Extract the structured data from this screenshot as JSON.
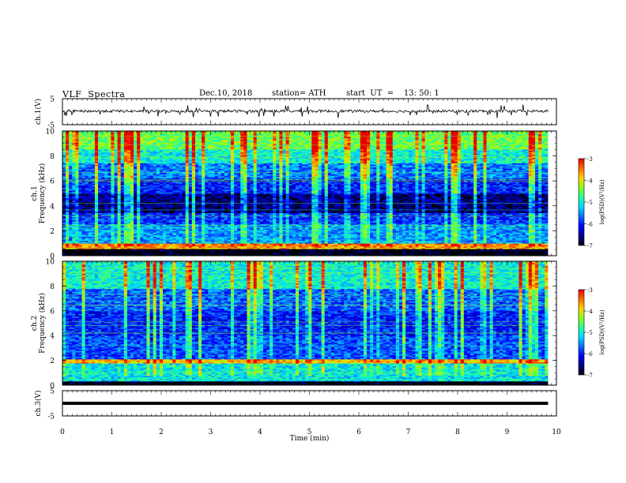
{
  "header": {
    "title": "VLF  Spectra",
    "date": "Dec.10, 2018",
    "station": "station= ATH",
    "start": "start  UT  =    13: 50: 1"
  },
  "chart_data": [
    {
      "type": "line",
      "panel": "ch1-waveform",
      "ylabel": "ch.1(V)",
      "ylim": [
        -5,
        5
      ],
      "yticks": [
        "5",
        "-5"
      ],
      "description_values": "noisy waveform centered near 0 V with short spikes down to about -2 V",
      "series": [
        {
          "x_range_min": [
            0,
            9.83
          ],
          "y_level": 0.2,
          "color": "#000000"
        }
      ]
    },
    {
      "type": "heatmap",
      "panel": "ch1-spectrogram",
      "ylabel": "ch.1\nFrequency  (kHz)",
      "ylim": [
        0,
        10
      ],
      "yticks": [
        "0",
        "2",
        "4",
        "6",
        "8",
        "10"
      ],
      "x_range_min": [
        0,
        9.83
      ],
      "colorbar": {
        "label": "log(PSD)(V²/Hz)",
        "range": [
          -7,
          -3
        ],
        "ticks": [
          "-3",
          "-4",
          "-5",
          "-6",
          "-7"
        ]
      },
      "bands": [
        {
          "from_khz": 0.0,
          "to_khz": 0.6,
          "log_psd": -7.0
        },
        {
          "from_khz": 0.6,
          "to_khz": 1.0,
          "log_psd": -3.6
        },
        {
          "from_khz": 1.0,
          "to_khz": 2.6,
          "log_psd": -5.5
        },
        {
          "from_khz": 2.6,
          "to_khz": 3.4,
          "log_psd": -5.9
        },
        {
          "from_khz": 3.4,
          "to_khz": 5.0,
          "log_psd": -6.6
        },
        {
          "from_khz": 5.0,
          "to_khz": 6.2,
          "log_psd": -6.0
        },
        {
          "from_khz": 6.2,
          "to_khz": 7.5,
          "log_psd": -5.6
        },
        {
          "from_khz": 7.5,
          "to_khz": 8.6,
          "log_psd": -5.0
        },
        {
          "from_khz": 8.6,
          "to_khz": 10.0,
          "log_psd": -4.5
        }
      ]
    },
    {
      "type": "heatmap",
      "panel": "ch2-spectrogram",
      "ylabel": "ch.2\nFrequency  (kHz)",
      "ylim": [
        0,
        10
      ],
      "yticks": [
        "0",
        "2",
        "4",
        "6",
        "8",
        "10"
      ],
      "x_range_min": [
        0,
        9.83
      ],
      "colorbar": {
        "label": "log(PSD)(V²/Hz)",
        "range": [
          -7,
          -3
        ],
        "ticks": [
          "-3",
          "-4",
          "-5",
          "-6",
          "-7"
        ]
      },
      "bands": [
        {
          "from_khz": 0.0,
          "to_khz": 0.3,
          "log_psd": -7.0
        },
        {
          "from_khz": 0.3,
          "to_khz": 1.8,
          "log_psd": -5.1
        },
        {
          "from_khz": 1.8,
          "to_khz": 2.1,
          "log_psd": -3.8
        },
        {
          "from_khz": 2.1,
          "to_khz": 4.0,
          "log_psd": -5.8
        },
        {
          "from_khz": 4.0,
          "to_khz": 6.0,
          "log_psd": -6.0
        },
        {
          "from_khz": 6.0,
          "to_khz": 7.8,
          "log_psd": -5.7
        },
        {
          "from_khz": 7.8,
          "to_khz": 10.0,
          "log_psd": -5.0
        }
      ]
    },
    {
      "type": "line",
      "panel": "ch3-waveform",
      "ylabel": "ch.3(V)",
      "ylim": [
        -5,
        5
      ],
      "yticks": [
        "5",
        "-5"
      ],
      "xlabel": "Time  (min)",
      "xlim": [
        0,
        10
      ],
      "xticks": [
        "0",
        "1",
        "2",
        "3",
        "4",
        "5",
        "6",
        "7",
        "8",
        "9",
        "10"
      ],
      "series": [
        {
          "x_range_min": [
            0,
            9.83
          ],
          "y_level": 0,
          "color": "#000000"
        }
      ]
    }
  ],
  "colors": {
    "axis": "#000000",
    "background": "#ffffff",
    "colormap": [
      "#000000",
      "#00008b",
      "#0000ff",
      "#0a6bff",
      "#00d8ff",
      "#22ff9a",
      "#8cff1a",
      "#ffd400",
      "#ff6a00",
      "#e80000",
      "#ffffff"
    ]
  }
}
